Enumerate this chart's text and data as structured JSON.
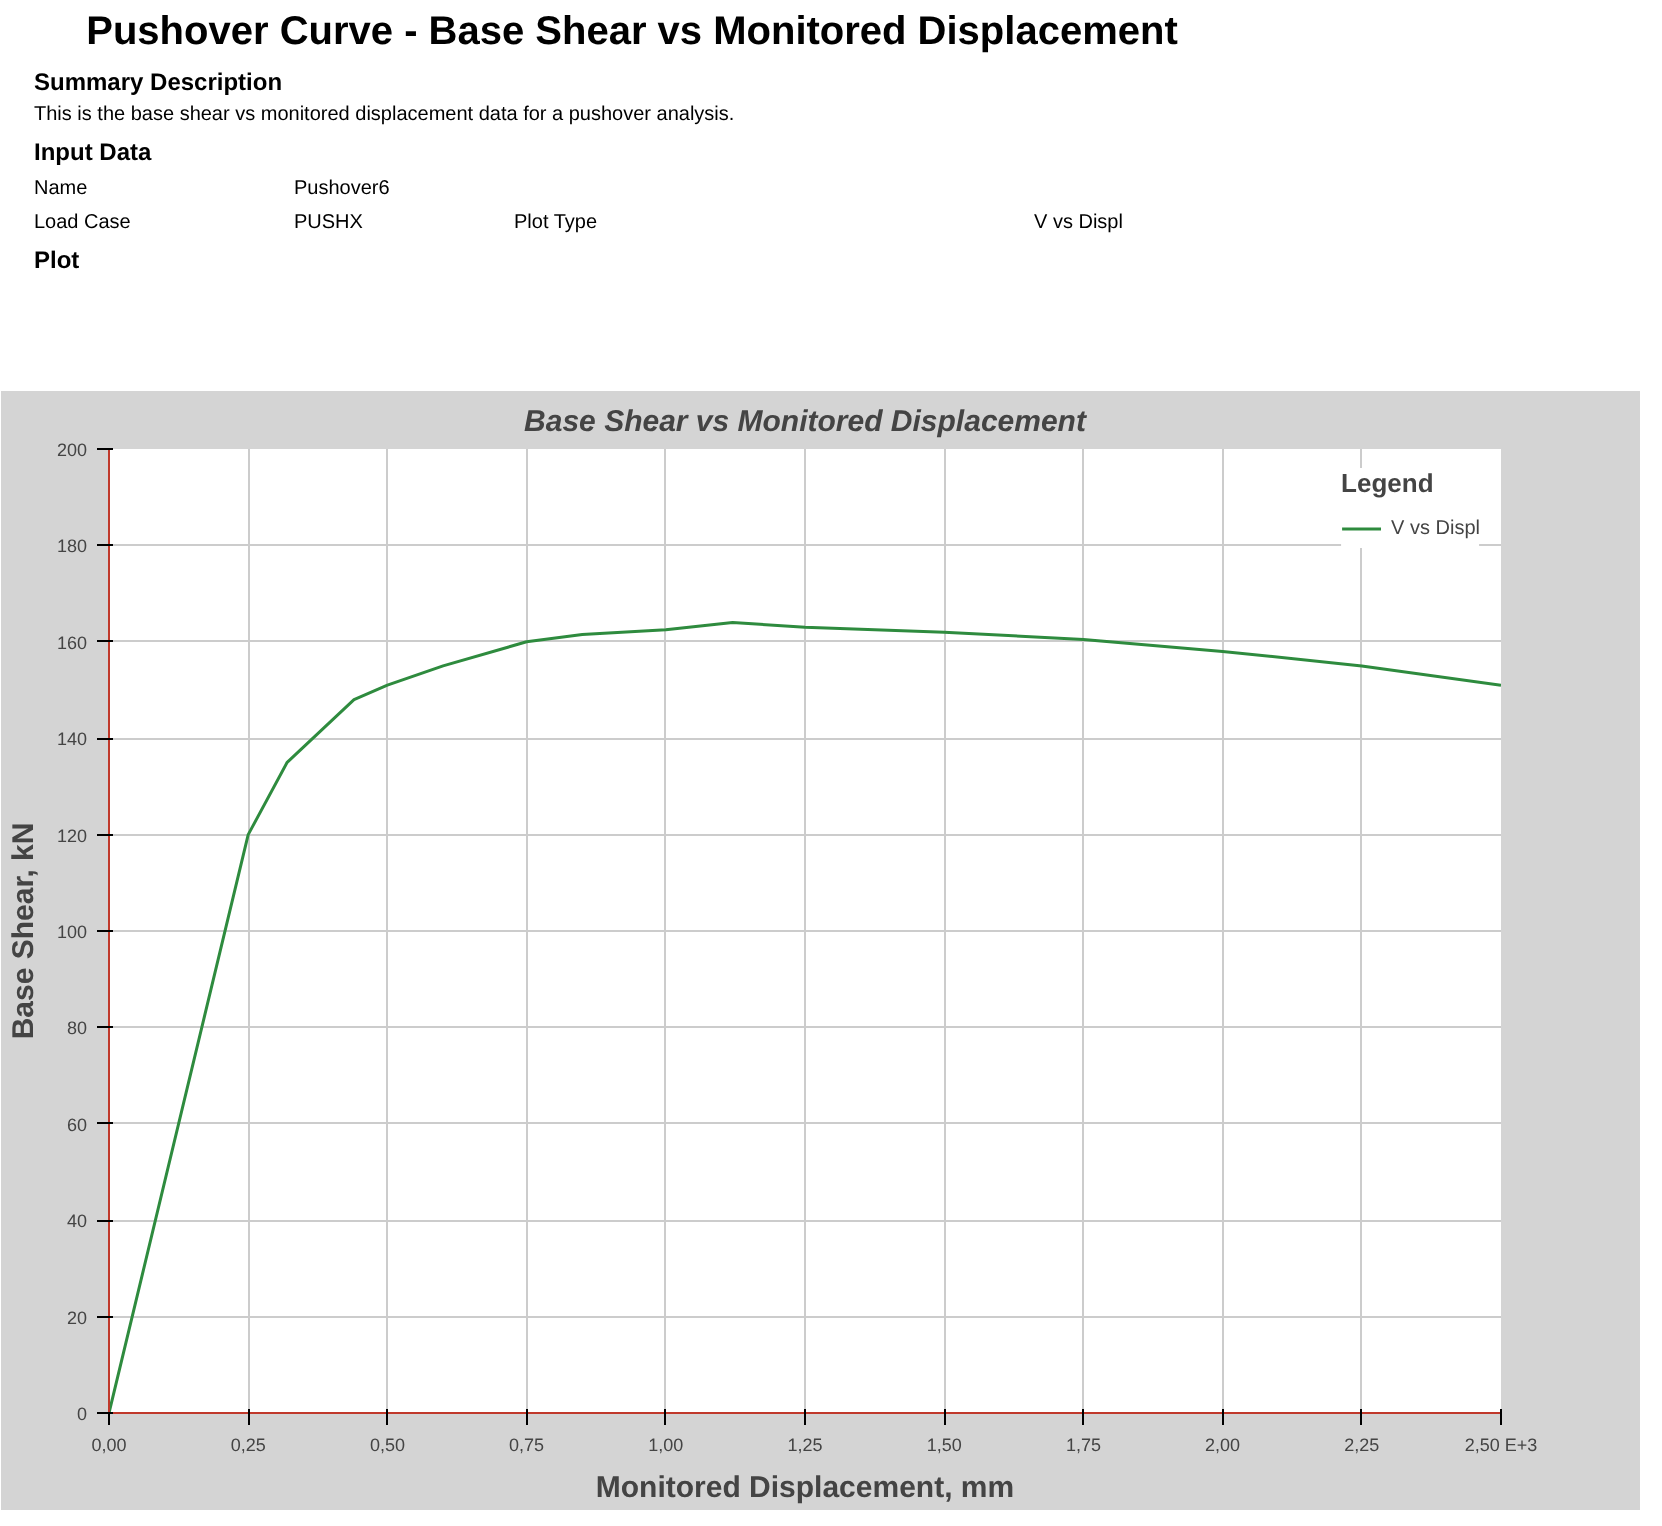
{
  "chart_data": {
    "type": "line",
    "title": "Pushover Curve - Base Shear vs Monitored Displacement",
    "subtitle": "Base Shear vs Monitored Displacement",
    "xlabel": "Monitored Displacement, mm",
    "ylabel": "Base Shear, kN",
    "legend_title": "Legend",
    "annotations": [
      "Summary Description",
      "This is the base shear vs monitored displacement data for a pushover analysis.",
      "Input Data",
      "Name",
      "Pushover6",
      "Load Case",
      "PUSHX",
      "Plot Type",
      "V vs Displ",
      "Plot"
    ],
    "x": [
      0,
      0.25,
      0.32,
      0.44,
      0.5,
      0.6,
      0.75,
      0.85,
      1.0,
      1.12,
      1.25,
      1.5,
      1.75,
      2.0,
      2.25,
      2.5
    ],
    "series": [
      {
        "name": "V vs Displ",
        "color": "#2e8b3e",
        "values": [
          0,
          120,
          135,
          148,
          151,
          155,
          160,
          161.5,
          162.5,
          164,
          163,
          162,
          160.5,
          158,
          155,
          151
        ]
      }
    ],
    "xlim": [
      0,
      2.5
    ],
    "ylim": [
      0,
      200
    ],
    "xticks": [
      {
        "value": 0,
        "label": "0,00"
      },
      {
        "value": 0.25,
        "label": "0,25"
      },
      {
        "value": 0.5,
        "label": "0,50"
      },
      {
        "value": 0.75,
        "label": "0,75"
      },
      {
        "value": 1.0,
        "label": "1,00"
      },
      {
        "value": 1.25,
        "label": "1,25"
      },
      {
        "value": 1.5,
        "label": "1,50"
      },
      {
        "value": 1.75,
        "label": "1,75"
      },
      {
        "value": 2.0,
        "label": "2,00"
      },
      {
        "value": 2.25,
        "label": "2,25"
      },
      {
        "value": 2.5,
        "label": "2,50 E+3"
      }
    ],
    "yticks": [
      0,
      20,
      40,
      60,
      80,
      100,
      120,
      140,
      160,
      180,
      200
    ],
    "grid": true,
    "legend": "top right",
    "marker": "none",
    "line_style": "solid"
  }
}
